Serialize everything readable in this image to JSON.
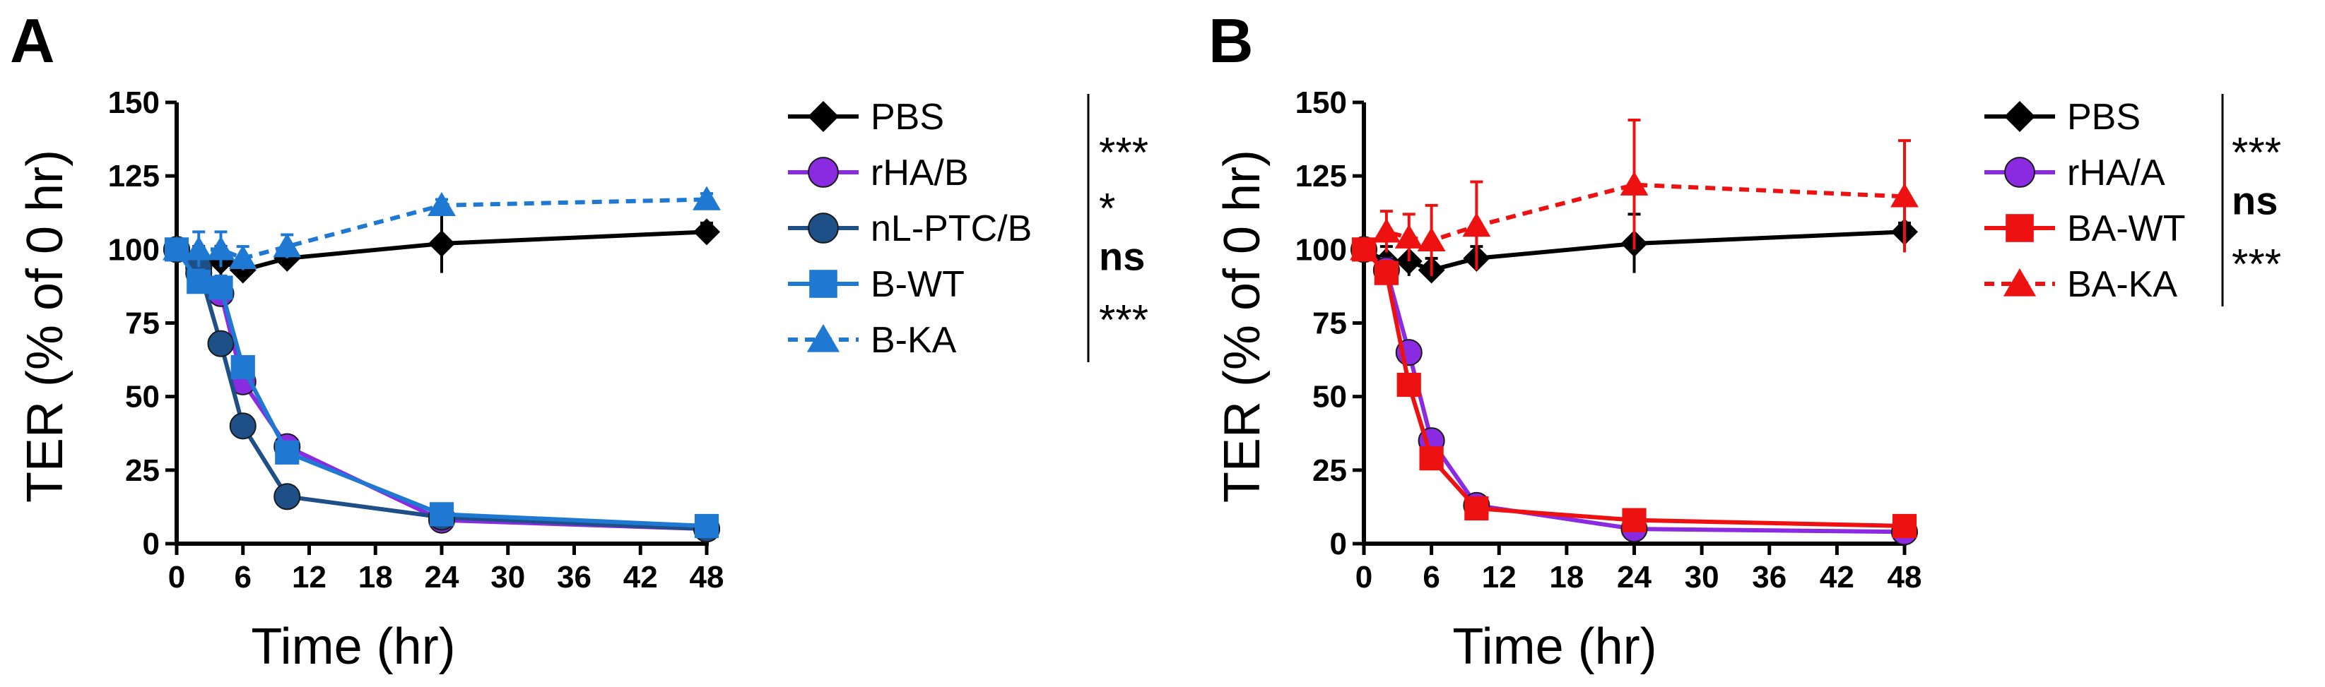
{
  "colors": {
    "black": "#000000",
    "purple": "#8a2be2",
    "navy": "#1e4f86",
    "lightblue": "#1f78d1",
    "red": "#ee1111"
  },
  "chart_data": [
    {
      "type": "line",
      "panel": "A",
      "xlabel": "Time (hr)",
      "ylabel": "TER (% of 0 hr)",
      "xlim": [
        0,
        48
      ],
      "ylim": [
        0,
        150
      ],
      "xticks": [
        0,
        6,
        12,
        18,
        24,
        30,
        36,
        42,
        48
      ],
      "yticks": [
        0,
        25,
        50,
        75,
        100,
        125,
        150
      ],
      "series": [
        {
          "name": "PBS",
          "color": "black",
          "marker": "diamond",
          "dashed": false,
          "points": [
            [
              0,
              100
            ],
            [
              2,
              96
            ],
            [
              4,
              96
            ],
            [
              6,
              93
            ],
            [
              10,
              97
            ],
            [
              24,
              102
            ],
            [
              48,
              106
            ]
          ],
          "errors": [
            0,
            5,
            5,
            4,
            4,
            10,
            3
          ]
        },
        {
          "name": "rHA/B",
          "color": "purple",
          "marker": "circle",
          "dashed": false,
          "points": [
            [
              0,
              100
            ],
            [
              2,
              92
            ],
            [
              4,
              85
            ],
            [
              6,
              55
            ],
            [
              10,
              33
            ],
            [
              24,
              8
            ],
            [
              48,
              5
            ]
          ],
          "errors": [
            0,
            4,
            4,
            4,
            3,
            2,
            1
          ]
        },
        {
          "name": "nL-PTC/B",
          "color": "navy",
          "marker": "circle",
          "dashed": false,
          "points": [
            [
              0,
              100
            ],
            [
              2,
              94
            ],
            [
              4,
              68
            ],
            [
              6,
              40
            ],
            [
              10,
              16
            ],
            [
              24,
              9
            ],
            [
              48,
              5
            ]
          ],
          "errors": [
            0,
            3,
            3,
            3,
            2,
            2,
            1
          ]
        },
        {
          "name": "B-WT",
          "color": "lightblue",
          "marker": "square",
          "dashed": false,
          "points": [
            [
              0,
              100
            ],
            [
              2,
              89
            ],
            [
              4,
              87
            ],
            [
              6,
              60
            ],
            [
              10,
              31
            ],
            [
              24,
              10
            ],
            [
              48,
              6
            ]
          ],
          "errors": [
            0,
            4,
            4,
            3,
            3,
            2,
            1
          ]
        },
        {
          "name": "B-KA",
          "color": "lightblue",
          "marker": "triangle",
          "dashed": true,
          "points": [
            [
              0,
              100
            ],
            [
              2,
              100
            ],
            [
              4,
              100
            ],
            [
              6,
              97
            ],
            [
              10,
              101
            ],
            [
              24,
              115
            ],
            [
              48,
              117
            ]
          ],
          "errors": [
            0,
            6,
            6,
            4,
            4,
            2,
            2
          ]
        }
      ],
      "significance": [
        {
          "label": "***",
          "rows": [
            "PBS",
            "rHA/B"
          ]
        },
        {
          "label": "*",
          "rows": [
            "rHA/B",
            "nL-PTC/B"
          ]
        },
        {
          "label": "ns",
          "rows": [
            "nL-PTC/B",
            "B-WT"
          ]
        },
        {
          "label": "***",
          "rows": [
            "B-WT",
            "B-KA"
          ]
        }
      ]
    },
    {
      "type": "line",
      "panel": "B",
      "xlabel": "Time (hr)",
      "ylabel": "TER (% of 0 hr)",
      "xlim": [
        0,
        48
      ],
      "ylim": [
        0,
        150
      ],
      "xticks": [
        0,
        6,
        12,
        18,
        24,
        30,
        36,
        42,
        48
      ],
      "yticks": [
        0,
        25,
        50,
        75,
        100,
        125,
        150
      ],
      "series": [
        {
          "name": "PBS",
          "color": "black",
          "marker": "diamond",
          "dashed": false,
          "points": [
            [
              0,
              100
            ],
            [
              2,
              96
            ],
            [
              4,
              96
            ],
            [
              6,
              93
            ],
            [
              10,
              97
            ],
            [
              24,
              102
            ],
            [
              48,
              106
            ]
          ],
          "errors": [
            0,
            5,
            5,
            4,
            4,
            10,
            3
          ]
        },
        {
          "name": "rHA/A",
          "color": "purple",
          "marker": "circle",
          "dashed": false,
          "points": [
            [
              0,
              100
            ],
            [
              2,
              93
            ],
            [
              4,
              65
            ],
            [
              6,
              35
            ],
            [
              10,
              13
            ],
            [
              24,
              5
            ],
            [
              48,
              4
            ]
          ],
          "errors": [
            0,
            4,
            3,
            3,
            2,
            1,
            1
          ]
        },
        {
          "name": "BA-WT",
          "color": "red",
          "marker": "square",
          "dashed": false,
          "points": [
            [
              0,
              100
            ],
            [
              2,
              92
            ],
            [
              4,
              54
            ],
            [
              6,
              29
            ],
            [
              10,
              12
            ],
            [
              24,
              8
            ],
            [
              48,
              6
            ]
          ],
          "errors": [
            0,
            4,
            3,
            3,
            2,
            1,
            1
          ]
        },
        {
          "name": "BA-KA",
          "color": "red",
          "marker": "triangle",
          "dashed": true,
          "points": [
            [
              0,
              100
            ],
            [
              2,
              106
            ],
            [
              4,
              104
            ],
            [
              6,
              103
            ],
            [
              10,
              108
            ],
            [
              24,
              122
            ],
            [
              48,
              118
            ]
          ],
          "errors": [
            0,
            7,
            8,
            12,
            15,
            22,
            19
          ]
        }
      ],
      "significance": [
        {
          "label": "***",
          "rows": [
            "PBS",
            "rHA/A"
          ]
        },
        {
          "label": "ns",
          "rows": [
            "rHA/A",
            "BA-WT"
          ]
        },
        {
          "label": "***",
          "rows": [
            "BA-WT",
            "BA-KA"
          ]
        }
      ]
    }
  ]
}
